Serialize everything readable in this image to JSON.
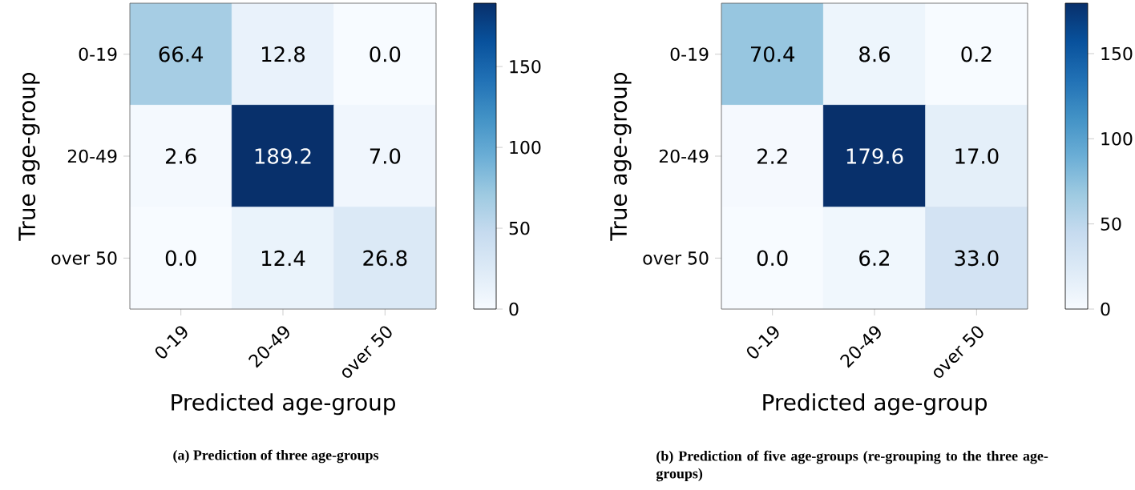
{
  "chart_data": [
    {
      "type": "heatmap",
      "xlabel": "Predicted age-group",
      "ylabel": "True age-group",
      "categories": [
        "0-19",
        "20-49",
        "over 50"
      ],
      "y_categories": [
        "0-19",
        "20-49",
        "over 50"
      ],
      "cells": [
        [
          66.4,
          12.8,
          0.0
        ],
        [
          2.6,
          189.2,
          7.0
        ],
        [
          0.0,
          12.4,
          26.8
        ]
      ],
      "cell_labels": [
        [
          "66.4",
          "12.8",
          "0.0"
        ],
        [
          "2.6",
          "189.2",
          "7.0"
        ],
        [
          "0.0",
          "12.4",
          "26.8"
        ]
      ],
      "clim": [
        0,
        189.2
      ],
      "cticks": [
        0,
        50,
        100,
        150
      ],
      "annotations": [
        "(a) Prediction of three age-groups"
      ]
    },
    {
      "type": "heatmap",
      "xlabel": "Predicted age-group",
      "ylabel": "True age-group",
      "categories": [
        "0-19",
        "20-49",
        "over 50"
      ],
      "y_categories": [
        "0-19",
        "20-49",
        "over 50"
      ],
      "cells": [
        [
          70.4,
          8.6,
          0.2
        ],
        [
          2.2,
          179.6,
          17.0
        ],
        [
          0.0,
          6.2,
          33.0
        ]
      ],
      "cell_labels": [
        [
          "70.4",
          "8.6",
          "0.2"
        ],
        [
          "2.2",
          "179.6",
          "17.0"
        ],
        [
          "0.0",
          "6.2",
          "33.0"
        ]
      ],
      "clim": [
        0,
        179.6
      ],
      "cticks": [
        0,
        50,
        100,
        150
      ],
      "annotations": [
        "(b) Prediction of five age-groups (re-grouping to the three age-groups)"
      ]
    }
  ]
}
